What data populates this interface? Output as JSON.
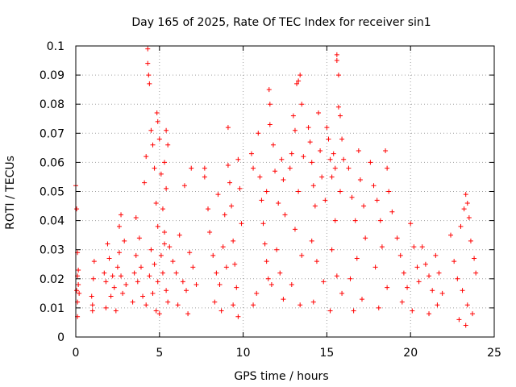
{
  "chart_data": {
    "type": "scatter",
    "title": "Day 165 of 2025, Rate Of TEC Index for receiver sin1",
    "xlabel": "GPS time / hours",
    "ylabel": "ROTI / TECUs",
    "xlim": [
      0,
      25
    ],
    "ylim": [
      0,
      0.1
    ],
    "xticks": [
      0,
      5,
      10,
      15,
      20,
      25
    ],
    "yticks": [
      0,
      0.01,
      0.02,
      0.03,
      0.04,
      0.05,
      0.06,
      0.07,
      0.08,
      0.09,
      0.1
    ],
    "xtick_labels": [
      "0",
      "5",
      "10",
      "15",
      "20",
      "25"
    ],
    "ytick_labels": [
      "0",
      "0.01",
      "0.02",
      "0.03",
      "0.04",
      "0.05",
      "0.06",
      "0.07",
      "0.08",
      "0.09",
      "0.1"
    ],
    "grid": true,
    "legend": "none",
    "marker": "+",
    "color": "#ff0000",
    "series": [
      {
        "values": [
          [
            0.0,
            0.052
          ],
          [
            0.05,
            0.044
          ],
          [
            0.1,
            0.029
          ],
          [
            0.1,
            0.021
          ],
          [
            0.15,
            0.018
          ],
          [
            0.2,
            0.015
          ],
          [
            0.1,
            0.012
          ],
          [
            0.1,
            0.007
          ],
          [
            0.05,
            0.016
          ],
          [
            0.15,
            0.023
          ],
          [
            0.95,
            0.014
          ],
          [
            1.0,
            0.011
          ],
          [
            1.05,
            0.02
          ],
          [
            1.1,
            0.026
          ],
          [
            1.0,
            0.009
          ],
          [
            1.7,
            0.022
          ],
          [
            1.8,
            0.019
          ],
          [
            1.9,
            0.032
          ],
          [
            2.0,
            0.027
          ],
          [
            2.1,
            0.014
          ],
          [
            2.2,
            0.021
          ],
          [
            2.3,
            0.017
          ],
          [
            2.4,
            0.009
          ],
          [
            2.5,
            0.024
          ],
          [
            1.8,
            0.01
          ],
          [
            2.6,
            0.038
          ],
          [
            2.6,
            0.029
          ],
          [
            2.7,
            0.021
          ],
          [
            2.8,
            0.015
          ],
          [
            2.9,
            0.033
          ],
          [
            3.0,
            0.018
          ],
          [
            2.7,
            0.042
          ],
          [
            3.4,
            0.012
          ],
          [
            3.6,
            0.028
          ],
          [
            3.6,
            0.041
          ],
          [
            3.7,
            0.019
          ],
          [
            3.8,
            0.034
          ],
          [
            3.9,
            0.024
          ],
          [
            4.0,
            0.014
          ],
          [
            3.5,
            0.022
          ],
          [
            4.1,
            0.053
          ],
          [
            4.2,
            0.062
          ],
          [
            4.3,
            0.099
          ],
          [
            4.3,
            0.094
          ],
          [
            4.35,
            0.09
          ],
          [
            4.4,
            0.087
          ],
          [
            4.5,
            0.071
          ],
          [
            4.6,
            0.066
          ],
          [
            4.7,
            0.058
          ],
          [
            4.8,
            0.046
          ],
          [
            4.9,
            0.038
          ],
          [
            4.5,
            0.03
          ],
          [
            4.7,
            0.025
          ],
          [
            4.4,
            0.021
          ],
          [
            4.6,
            0.015
          ],
          [
            4.8,
            0.009
          ],
          [
            4.2,
            0.011
          ],
          [
            4.9,
            0.019
          ],
          [
            4.85,
            0.077
          ],
          [
            4.9,
            0.074
          ],
          [
            5.0,
            0.068
          ],
          [
            5.1,
            0.056
          ],
          [
            5.2,
            0.044
          ],
          [
            5.3,
            0.036
          ],
          [
            5.4,
            0.071
          ],
          [
            5.5,
            0.066
          ],
          [
            5.3,
            0.06
          ],
          [
            5.4,
            0.051
          ],
          [
            5.1,
            0.028
          ],
          [
            5.2,
            0.022
          ],
          [
            5.4,
            0.016
          ],
          [
            5.5,
            0.012
          ],
          [
            5.0,
            0.008
          ],
          [
            5.3,
            0.032
          ],
          [
            5.6,
            0.031
          ],
          [
            5.8,
            0.026
          ],
          [
            6.0,
            0.022
          ],
          [
            6.2,
            0.035
          ],
          [
            6.4,
            0.019
          ],
          [
            6.6,
            0.016
          ],
          [
            6.8,
            0.029
          ],
          [
            7.0,
            0.024
          ],
          [
            7.2,
            0.018
          ],
          [
            6.5,
            0.052
          ],
          [
            6.9,
            0.058
          ],
          [
            6.1,
            0.011
          ],
          [
            6.7,
            0.008
          ],
          [
            7.7,
            0.058
          ],
          [
            7.7,
            0.055
          ],
          [
            7.9,
            0.044
          ],
          [
            8.0,
            0.036
          ],
          [
            8.2,
            0.028
          ],
          [
            8.4,
            0.022
          ],
          [
            8.6,
            0.018
          ],
          [
            8.8,
            0.031
          ],
          [
            9.0,
            0.024
          ],
          [
            8.3,
            0.012
          ],
          [
            8.7,
            0.009
          ],
          [
            8.5,
            0.049
          ],
          [
            8.9,
            0.042
          ],
          [
            9.1,
            0.072
          ],
          [
            9.1,
            0.059
          ],
          [
            9.2,
            0.053
          ],
          [
            9.3,
            0.045
          ],
          [
            9.4,
            0.033
          ],
          [
            9.5,
            0.025
          ],
          [
            9.6,
            0.017
          ],
          [
            9.7,
            0.061
          ],
          [
            9.8,
            0.051
          ],
          [
            9.9,
            0.039
          ],
          [
            9.4,
            0.011
          ],
          [
            9.7,
            0.007
          ],
          [
            10.5,
            0.063
          ],
          [
            10.6,
            0.058
          ],
          [
            10.9,
            0.07
          ],
          [
            11.0,
            0.055
          ],
          [
            11.1,
            0.047
          ],
          [
            11.2,
            0.039
          ],
          [
            11.3,
            0.032
          ],
          [
            11.4,
            0.026
          ],
          [
            11.5,
            0.02
          ],
          [
            10.8,
            0.015
          ],
          [
            10.6,
            0.011
          ],
          [
            11.4,
            0.05
          ],
          [
            11.55,
            0.085
          ],
          [
            11.6,
            0.08
          ],
          [
            11.6,
            0.073
          ],
          [
            11.8,
            0.066
          ],
          [
            11.9,
            0.057
          ],
          [
            12.1,
            0.046
          ],
          [
            12.3,
            0.061
          ],
          [
            12.4,
            0.054
          ],
          [
            12.5,
            0.042
          ],
          [
            12.0,
            0.03
          ],
          [
            12.2,
            0.022
          ],
          [
            11.7,
            0.018
          ],
          [
            12.4,
            0.013
          ],
          [
            12.8,
            0.058
          ],
          [
            12.9,
            0.063
          ],
          [
            13.0,
            0.076
          ],
          [
            13.1,
            0.071
          ],
          [
            13.2,
            0.087
          ],
          [
            13.3,
            0.088
          ],
          [
            13.4,
            0.09
          ],
          [
            13.5,
            0.08
          ],
          [
            13.6,
            0.062
          ],
          [
            13.3,
            0.05
          ],
          [
            13.1,
            0.037
          ],
          [
            13.5,
            0.028
          ],
          [
            12.9,
            0.018
          ],
          [
            13.4,
            0.011
          ],
          [
            13.9,
            0.072
          ],
          [
            14.0,
            0.067
          ],
          [
            14.1,
            0.06
          ],
          [
            14.2,
            0.052
          ],
          [
            14.3,
            0.045
          ],
          [
            14.5,
            0.077
          ],
          [
            14.6,
            0.064
          ],
          [
            14.7,
            0.055
          ],
          [
            14.9,
            0.047
          ],
          [
            14.1,
            0.033
          ],
          [
            14.4,
            0.026
          ],
          [
            14.8,
            0.019
          ],
          [
            14.2,
            0.012
          ],
          [
            15.0,
            0.072
          ],
          [
            15.1,
            0.068
          ],
          [
            15.2,
            0.061
          ],
          [
            15.3,
            0.055
          ],
          [
            15.4,
            0.063
          ],
          [
            15.5,
            0.058
          ],
          [
            15.6,
            0.097
          ],
          [
            15.6,
            0.095
          ],
          [
            15.7,
            0.09
          ],
          [
            15.7,
            0.079
          ],
          [
            15.8,
            0.076
          ],
          [
            15.9,
            0.068
          ],
          [
            16.0,
            0.061
          ],
          [
            15.8,
            0.05
          ],
          [
            15.5,
            0.04
          ],
          [
            15.3,
            0.03
          ],
          [
            15.6,
            0.021
          ],
          [
            15.9,
            0.015
          ],
          [
            15.2,
            0.009
          ],
          [
            16.3,
            0.058
          ],
          [
            16.5,
            0.048
          ],
          [
            16.7,
            0.04
          ],
          [
            16.9,
            0.064
          ],
          [
            17.0,
            0.054
          ],
          [
            17.2,
            0.045
          ],
          [
            17.3,
            0.034
          ],
          [
            16.8,
            0.027
          ],
          [
            16.4,
            0.02
          ],
          [
            17.1,
            0.013
          ],
          [
            16.6,
            0.009
          ],
          [
            17.6,
            0.06
          ],
          [
            17.8,
            0.052
          ],
          [
            18.0,
            0.047
          ],
          [
            18.2,
            0.04
          ],
          [
            18.5,
            0.064
          ],
          [
            18.6,
            0.058
          ],
          [
            18.7,
            0.05
          ],
          [
            18.9,
            0.043
          ],
          [
            18.3,
            0.031
          ],
          [
            17.9,
            0.024
          ],
          [
            18.6,
            0.017
          ],
          [
            18.1,
            0.01
          ],
          [
            19.2,
            0.034
          ],
          [
            19.4,
            0.028
          ],
          [
            19.6,
            0.022
          ],
          [
            19.8,
            0.017
          ],
          [
            20.0,
            0.039
          ],
          [
            20.2,
            0.031
          ],
          [
            20.4,
            0.024
          ],
          [
            20.5,
            0.019
          ],
          [
            19.5,
            0.012
          ],
          [
            20.1,
            0.009
          ],
          [
            20.7,
            0.031
          ],
          [
            20.9,
            0.025
          ],
          [
            21.1,
            0.021
          ],
          [
            21.3,
            0.016
          ],
          [
            21.5,
            0.028
          ],
          [
            21.7,
            0.022
          ],
          [
            21.9,
            0.015
          ],
          [
            21.1,
            0.008
          ],
          [
            21.6,
            0.011
          ],
          [
            22.4,
            0.035
          ],
          [
            22.6,
            0.026
          ],
          [
            22.8,
            0.02
          ],
          [
            23.0,
            0.038
          ],
          [
            23.2,
            0.044
          ],
          [
            23.3,
            0.049
          ],
          [
            23.4,
            0.046
          ],
          [
            23.5,
            0.041
          ],
          [
            23.6,
            0.033
          ],
          [
            23.8,
            0.027
          ],
          [
            23.9,
            0.022
          ],
          [
            23.1,
            0.016
          ],
          [
            23.4,
            0.011
          ],
          [
            22.9,
            0.006
          ],
          [
            23.3,
            0.004
          ],
          [
            23.7,
            0.008
          ]
        ]
      }
    ]
  }
}
